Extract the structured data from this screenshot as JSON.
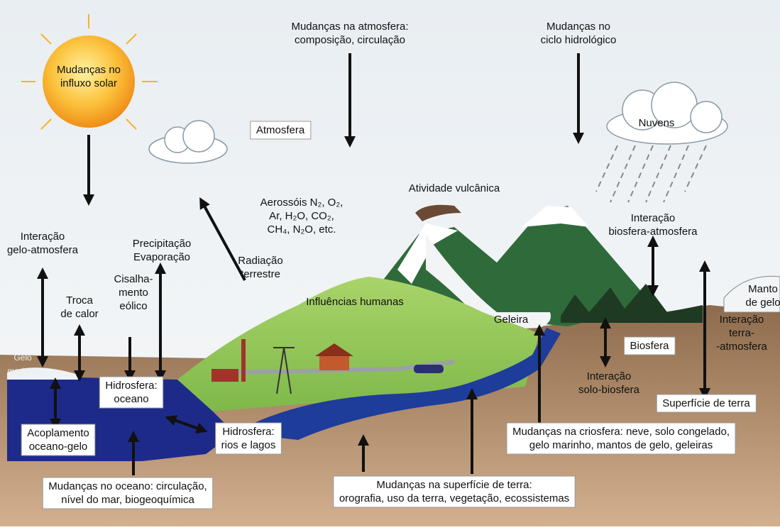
{
  "labels": {
    "solar": [
      "Mudanças no",
      "influxo solar"
    ],
    "atmosfera_mudancas": [
      "Mudanças na atmosfera:",
      "composição, circulação"
    ],
    "ciclo": [
      "Mudanças no",
      "ciclo hidrológico"
    ],
    "atmosfera": [
      "Atmosfera"
    ],
    "nuvens": [
      "Nuvens"
    ],
    "vulcanica": [
      "Atividade vulcânica"
    ],
    "aerossois": [
      "Aerossóis N₂, O₂,",
      "Ar, H₂O, CO₂,",
      "CH₄, N₂O, etc."
    ],
    "bio_atmos": [
      "Interação",
      "biosfera-atmosfera"
    ],
    "gelo_atmos": [
      "Interação",
      "gelo-atmosfera"
    ],
    "precip": [
      "Precipitação",
      "Evaporação"
    ],
    "troca": [
      "Troca",
      "de calor"
    ],
    "cisalha": [
      "Cisalha-",
      "mento",
      "eólico"
    ],
    "radiacao": [
      "Radiação",
      "terrestre"
    ],
    "humanas": [
      "Influências humanas"
    ],
    "geleira": [
      "Geleira"
    ],
    "manto": [
      "Manto",
      "de gelo"
    ],
    "biosfera": [
      "Biosfera"
    ],
    "terra_atmos": [
      "Interação",
      "terra-",
      "-atmosfera"
    ],
    "gelo_marinho": [
      "Gelo",
      "marinho"
    ],
    "hidro_oceano": [
      "Hidrosfera:",
      "oceano"
    ],
    "solo_bio": [
      "Interação",
      "solo-biosfera"
    ],
    "superficie": [
      "Superfície de terra"
    ],
    "acoplamento": [
      "Acoplamento",
      "oceano-gelo"
    ],
    "rios": [
      "Hidrosfera:",
      "rios e lagos"
    ],
    "criosfera": [
      "Mudanças na criosfera: neve, solo congelado,",
      "gelo marinho, mantos de gelo, geleiras"
    ],
    "oceano": [
      "Mudanças no oceano: circulação,",
      "nível do mar, biogeoquímica"
    ],
    "sup_terra": [
      "Mudanças na superfície de terra:",
      "orografia, uso da terra, vegetação, ecossistemas"
    ]
  }
}
